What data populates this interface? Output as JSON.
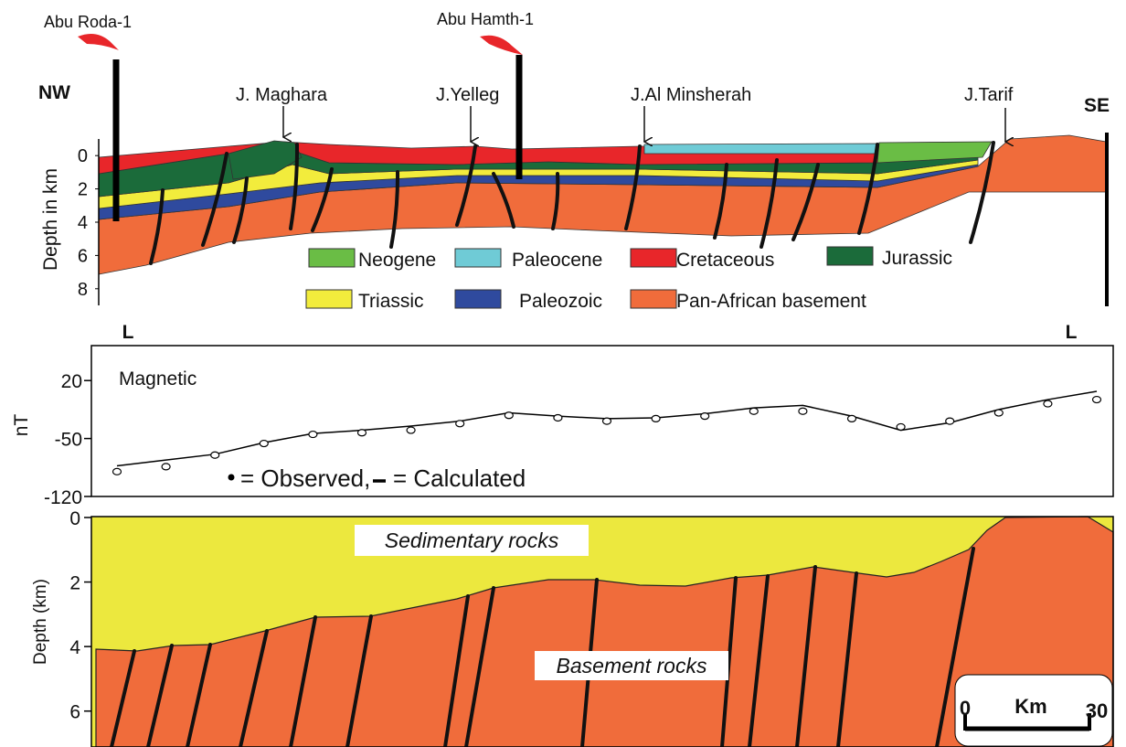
{
  "cross_section": {
    "wells": [
      "Abu Roda-1",
      "Abu Hamth-1"
    ],
    "ends": {
      "left": "NW",
      "right": "SE"
    },
    "features": [
      "J. Maghara",
      "J.Yelleg",
      "J.Al Minsherah",
      "J.Tarif"
    ],
    "y_label": "Depth in km",
    "ylim": [
      -1,
      9
    ],
    "yticks": [
      0,
      2,
      4,
      6,
      8
    ],
    "legend": [
      {
        "name": "Neogene",
        "color": "#6abd45"
      },
      {
        "name": "Paleocene",
        "color": "#6fcbd6"
      },
      {
        "name": "Cretaceous",
        "color": "#e8262a"
      },
      {
        "name": "Jurassic",
        "color": "#1b6b3a"
      },
      {
        "name": "Triassic",
        "color": "#f2ec3c"
      },
      {
        "name": "Paleozoic",
        "color": "#2f4a9e"
      },
      {
        "name": "Pan-African  basement",
        "color": "#f06c3b"
      }
    ],
    "profile_ends": [
      "L",
      "L"
    ]
  },
  "magnetic": {
    "title": "Magnetic",
    "y_label": "nT",
    "ylim": [
      -120,
      60
    ],
    "yticks": [
      20,
      -50,
      -120
    ],
    "observed": {
      "name": "= Observed,",
      "values": [
        -90,
        -84,
        -70,
        -56,
        -45,
        -43,
        -40,
        -32,
        -22,
        -25,
        -29,
        -26,
        -23,
        -17,
        -17,
        -26,
        -36,
        -29,
        -19,
        -8,
        -3
      ]
    },
    "calculated": {
      "name": "= Calculated",
      "values": [
        -83,
        -76,
        -69,
        -55,
        -44,
        -40,
        -35,
        -29,
        -19,
        -23,
        -26,
        -25,
        -20,
        -13,
        -10,
        -23,
        -40,
        -31,
        -15,
        -3,
        7
      ]
    }
  },
  "model": {
    "y_label": "Depth (km)",
    "ylim": [
      0,
      7
    ],
    "yticks": [
      0,
      2,
      4,
      6
    ],
    "labels": [
      "Sedimentary rocks",
      "Basement rocks"
    ],
    "scale_bar": {
      "start": 0,
      "unit": "Km",
      "end": 30
    }
  }
}
